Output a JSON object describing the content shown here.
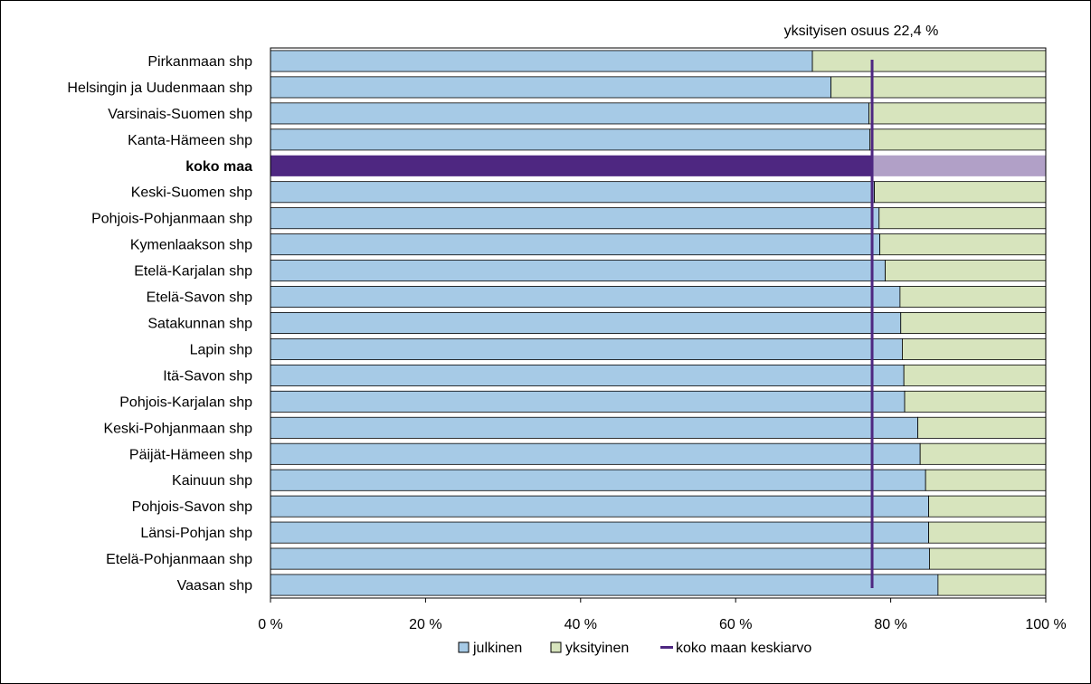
{
  "chart_data": {
    "type": "bar",
    "stacked": "percent",
    "orientation": "horizontal",
    "categories": [
      "Pirkanmaan shp",
      "Helsingin ja Uudenmaan shp",
      "Varsinais-Suomen shp",
      "Kanta-Hämeen shp",
      "koko maa",
      "Keski-Suomen shp",
      "Pohjois-Pohjanmaan shp",
      "Kymenlaakson shp",
      "Etelä-Karjalan shp",
      "Etelä-Savon shp",
      "Satakunnan shp",
      "Lapin shp",
      "Itä-Savon shp",
      "Pohjois-Karjalan shp",
      "Keski-Pohjanmaan shp",
      "Päijät-Hämeen shp",
      "Kainuun shp",
      "Pohjois-Savon shp",
      "Länsi-Pohjan shp",
      "Etelä-Pohjanmaan shp",
      "Vaasan shp"
    ],
    "highlight_category": "koko maa",
    "series": [
      {
        "name": "julkinen",
        "color": "#a6cae6",
        "highlight_color": "#4e2781",
        "values": [
          69.9,
          72.3,
          77.2,
          77.3,
          77.6,
          77.9,
          78.5,
          78.6,
          79.3,
          81.2,
          81.3,
          81.5,
          81.7,
          81.8,
          83.5,
          83.8,
          84.5,
          84.9,
          84.9,
          85.0,
          86.1
        ]
      },
      {
        "name": "yksityinen",
        "color": "#d7e4bd",
        "highlight_color": "#b1a0c7",
        "values": [
          30.1,
          27.7,
          22.8,
          22.7,
          22.4,
          22.1,
          21.5,
          21.4,
          20.7,
          18.8,
          18.7,
          18.5,
          18.3,
          18.2,
          16.5,
          16.2,
          15.5,
          15.1,
          15.1,
          15.0,
          13.9
        ]
      }
    ],
    "reference_line": {
      "name": "koko maan keskiarvo",
      "value": 77.6,
      "color": "#4e2781"
    },
    "annotation": "yksityisen osuus 22,4 %",
    "x_ticks": [
      "0 %",
      "20 %",
      "40 %",
      "60 %",
      "80 %",
      "100 %"
    ],
    "xlim": [
      0,
      100
    ],
    "grid": false,
    "legend_position": "bottom"
  }
}
